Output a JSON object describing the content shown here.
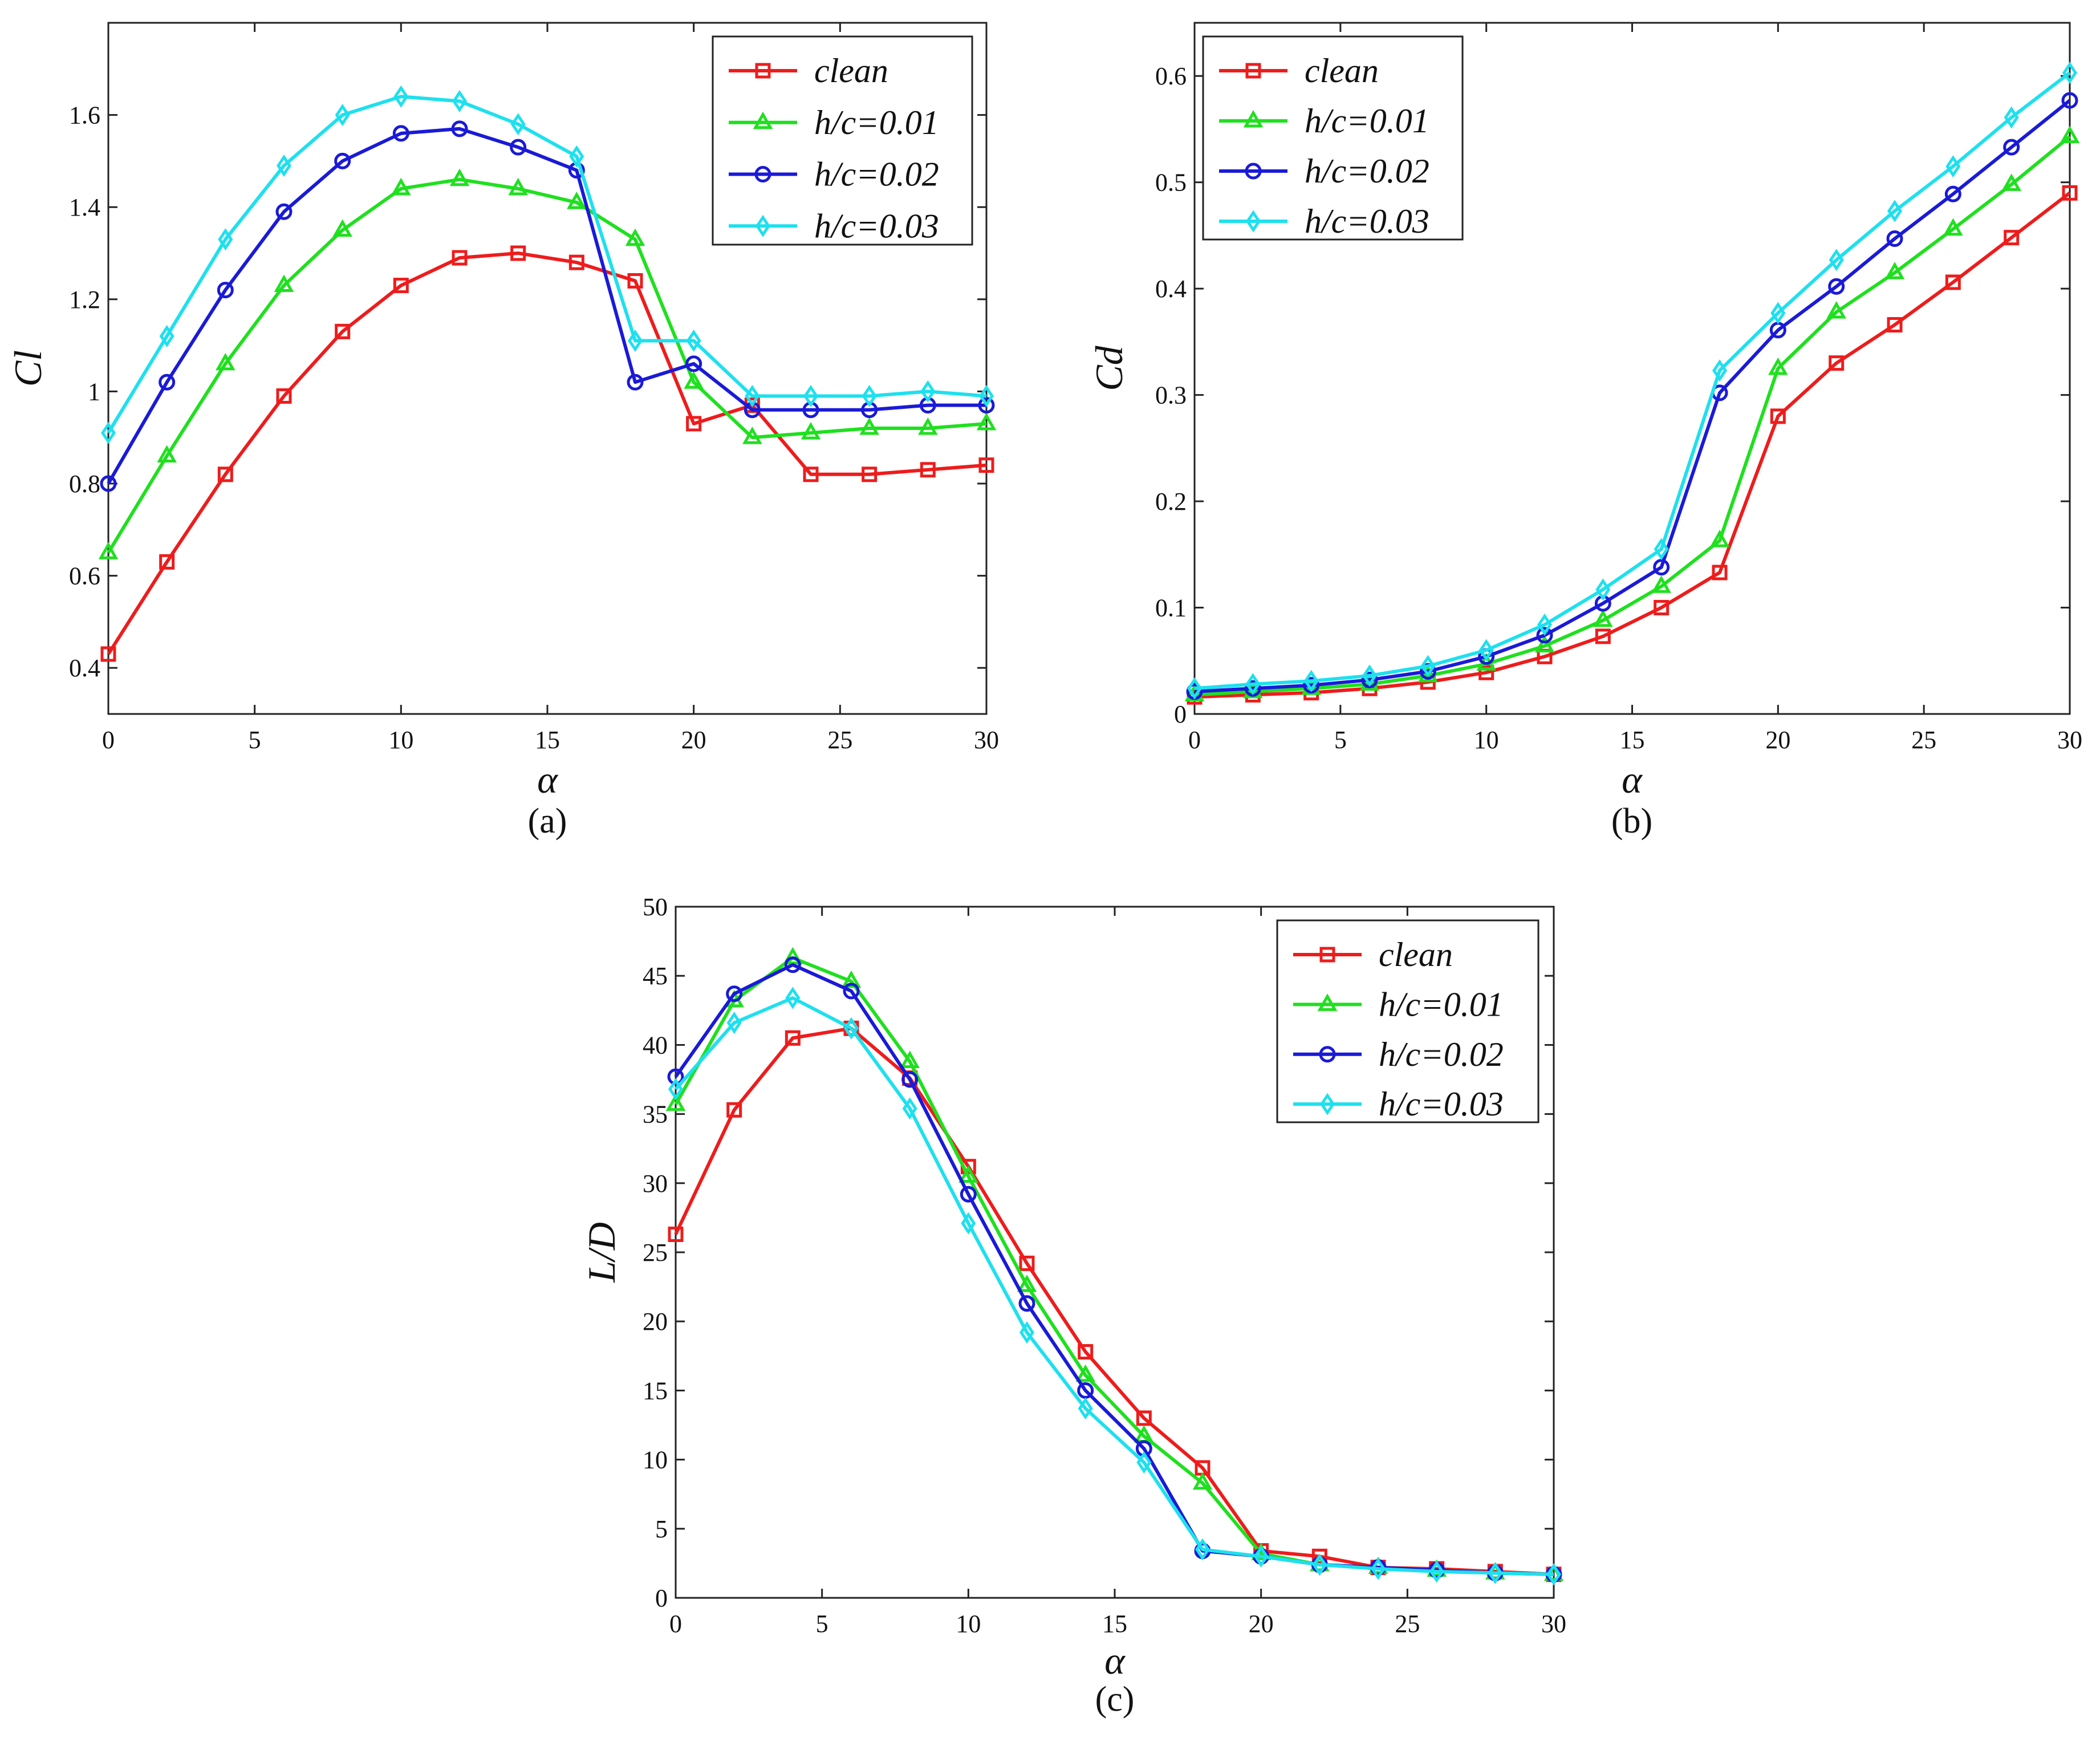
{
  "figure": {
    "panel_captions": [
      "(a)",
      "(b)",
      "(c)"
    ]
  },
  "series_style": [
    {
      "name": "clean",
      "color": "#ee1c1c",
      "marker": "square"
    },
    {
      "name": "h/c=0.01",
      "color": "#1fe01f",
      "marker": "triangle"
    },
    {
      "name": "h/c=0.02",
      "color": "#1a1ad8",
      "marker": "circle"
    },
    {
      "name": "h/c=0.03",
      "color": "#1ee0ee",
      "marker": "diamond"
    }
  ],
  "chart_data": [
    {
      "type": "line",
      "caption": "(a)",
      "xlabel": "α",
      "ylabel": "Cl",
      "xlim": [
        0,
        30
      ],
      "ylim": [
        0.3,
        1.8
      ],
      "xticks": [
        0,
        5,
        10,
        15,
        20,
        25,
        30
      ],
      "yticks": [
        0.4,
        0.6,
        0.8,
        1,
        1.2,
        1.4,
        1.6
      ],
      "ytick_labels": [
        "0.4",
        "0.6",
        "0.8",
        "1",
        "1.2",
        "1.4",
        "1.6"
      ],
      "legend_position": "top-right",
      "x": [
        0,
        2,
        4,
        6,
        8,
        10,
        12,
        14,
        16,
        18,
        20,
        22,
        24,
        26,
        28,
        30
      ],
      "series": [
        {
          "name": "clean",
          "values": [
            0.43,
            0.63,
            0.82,
            0.99,
            1.13,
            1.23,
            1.29,
            1.3,
            1.28,
            1.24,
            0.93,
            0.97,
            0.82,
            0.82,
            0.83,
            0.84
          ]
        },
        {
          "name": "h/c=0.01",
          "values": [
            0.65,
            0.86,
            1.06,
            1.23,
            1.35,
            1.44,
            1.46,
            1.44,
            1.41,
            1.33,
            1.02,
            0.9,
            0.91,
            0.92,
            0.92,
            0.93
          ]
        },
        {
          "name": "h/c=0.02",
          "values": [
            0.8,
            1.02,
            1.22,
            1.39,
            1.5,
            1.56,
            1.57,
            1.53,
            1.48,
            1.02,
            1.06,
            0.96,
            0.96,
            0.96,
            0.97,
            0.97
          ]
        },
        {
          "name": "h/c=0.03",
          "values": [
            0.91,
            1.12,
            1.33,
            1.49,
            1.6,
            1.64,
            1.63,
            1.58,
            1.51,
            1.11,
            1.11,
            0.99,
            0.99,
            0.99,
            1.0,
            0.99
          ]
        }
      ]
    },
    {
      "type": "line",
      "caption": "(b)",
      "xlabel": "α",
      "ylabel": "Cd",
      "xlim": [
        0,
        30
      ],
      "ylim": [
        0,
        0.65
      ],
      "xticks": [
        0,
        5,
        10,
        15,
        20,
        25,
        30
      ],
      "yticks": [
        0,
        0.1,
        0.2,
        0.3,
        0.4,
        0.5,
        0.6
      ],
      "ytick_labels": [
        "0",
        "0.1",
        "0.2",
        "0.3",
        "0.4",
        "0.5",
        "0.6"
      ],
      "legend_position": "top-left",
      "x": [
        0,
        2,
        4,
        6,
        8,
        10,
        12,
        14,
        16,
        18,
        20,
        22,
        24,
        26,
        28,
        30
      ],
      "series": [
        {
          "name": "clean",
          "values": [
            0.016,
            0.018,
            0.02,
            0.024,
            0.03,
            0.039,
            0.054,
            0.073,
            0.1,
            0.133,
            0.28,
            0.33,
            0.366,
            0.406,
            0.448,
            0.49
          ]
        },
        {
          "name": "h/c=0.01",
          "values": [
            0.018,
            0.021,
            0.024,
            0.028,
            0.036,
            0.047,
            0.064,
            0.088,
            0.12,
            0.163,
            0.325,
            0.378,
            0.415,
            0.456,
            0.498,
            0.543
          ]
        },
        {
          "name": "h/c=0.02",
          "values": [
            0.021,
            0.024,
            0.027,
            0.032,
            0.04,
            0.054,
            0.074,
            0.104,
            0.138,
            0.302,
            0.361,
            0.402,
            0.447,
            0.489,
            0.533,
            0.577
          ]
        },
        {
          "name": "h/c=0.03",
          "values": [
            0.024,
            0.028,
            0.031,
            0.036,
            0.045,
            0.06,
            0.084,
            0.117,
            0.155,
            0.323,
            0.377,
            0.427,
            0.473,
            0.515,
            0.561,
            0.603
          ]
        }
      ]
    },
    {
      "type": "line",
      "caption": "(c)",
      "xlabel": "α",
      "ylabel": "L/D",
      "xlim": [
        0,
        30
      ],
      "ylim": [
        0,
        50
      ],
      "xticks": [
        0,
        5,
        10,
        15,
        20,
        25,
        30
      ],
      "yticks": [
        0,
        5,
        10,
        15,
        20,
        25,
        30,
        35,
        40,
        45,
        50
      ],
      "ytick_labels": [
        "0",
        "5",
        "10",
        "15",
        "20",
        "25",
        "30",
        "35",
        "40",
        "45",
        "50"
      ],
      "legend_position": "top-right",
      "x": [
        0,
        2,
        4,
        6,
        8,
        10,
        12,
        14,
        16,
        18,
        20,
        22,
        24,
        26,
        28,
        30
      ],
      "series": [
        {
          "name": "clean",
          "values": [
            26.3,
            35.3,
            40.5,
            41.2,
            37.6,
            31.2,
            24.2,
            17.8,
            13.0,
            9.4,
            3.4,
            3.0,
            2.2,
            2.1,
            1.9,
            1.7
          ]
        },
        {
          "name": "h/c=0.01",
          "values": [
            35.7,
            43.2,
            46.3,
            44.6,
            38.8,
            30.5,
            22.6,
            16.1,
            11.7,
            8.3,
            3.2,
            2.4,
            2.2,
            2.0,
            1.8,
            1.7
          ]
        },
        {
          "name": "h/c=0.02",
          "values": [
            37.7,
            43.7,
            45.8,
            43.9,
            37.5,
            29.2,
            21.3,
            15.0,
            10.8,
            3.4,
            3.0,
            2.4,
            2.2,
            2.0,
            1.8,
            1.7
          ]
        },
        {
          "name": "h/c=0.03",
          "values": [
            36.8,
            41.6,
            43.4,
            41.2,
            35.4,
            27.1,
            19.2,
            13.7,
            9.8,
            3.5,
            3.0,
            2.4,
            2.1,
            1.9,
            1.8,
            1.7
          ]
        }
      ]
    }
  ]
}
